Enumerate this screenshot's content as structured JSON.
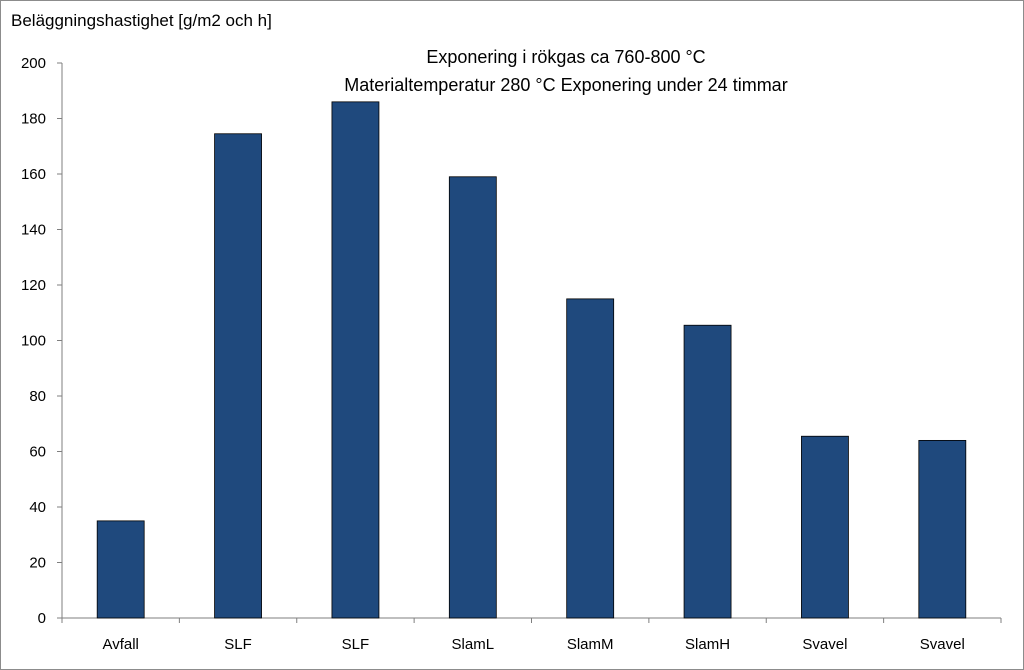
{
  "chart_data": {
    "type": "bar",
    "title_lines": [
      "Exponering i rökgas ca 760-800 °C",
      "Materialtemperatur 280 °C Exponering under 24 timmar"
    ],
    "xlabel": "",
    "ylabel": "Beläggningshastighet [g/m2 och h]",
    "ylim": [
      0,
      200
    ],
    "yticks": [
      0,
      20,
      40,
      60,
      80,
      100,
      120,
      140,
      160,
      180,
      200
    ],
    "categories": [
      "Avfall",
      "SLF",
      "SLF",
      "SlamL",
      "SlamM",
      "SlamH",
      "Svavel",
      "Svavel"
    ],
    "values": [
      35,
      174.5,
      186,
      159,
      115,
      105.5,
      65.5,
      64
    ],
    "bar_color": "#1F497D",
    "grid": false,
    "legend": "none"
  }
}
